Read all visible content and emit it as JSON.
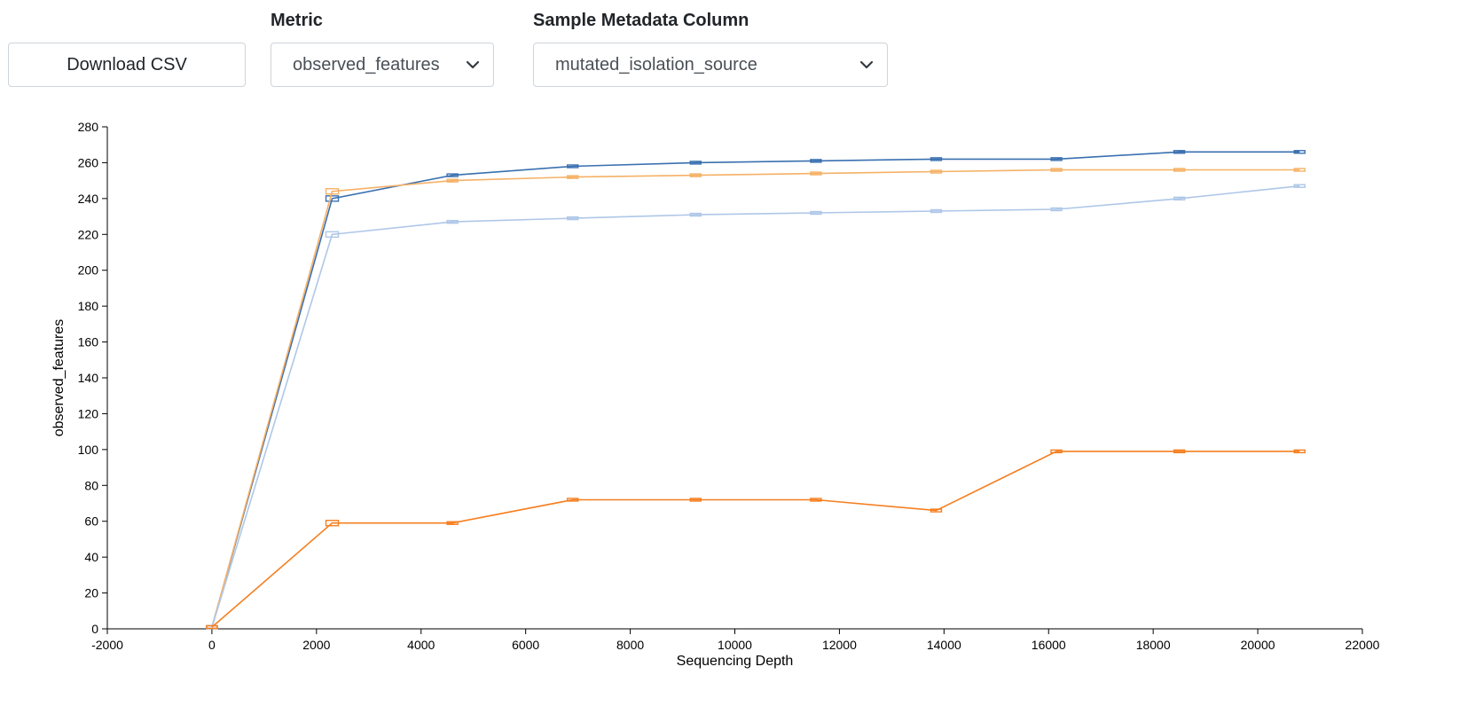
{
  "controls": {
    "download_label": "Download CSV",
    "metric_label": "Metric",
    "metric_value": "observed_features",
    "metadata_label": "Sample Metadata Column",
    "metadata_value": "mutated_isolation_source"
  },
  "icons": {
    "metric_dropdown": "chevron-down-icon",
    "metadata_dropdown": "chevron-down-icon"
  },
  "chart_data": {
    "type": "line",
    "xlabel": "Sequencing Depth",
    "ylabel": "observed_features",
    "xlim": [
      -2000,
      22000
    ],
    "ylim": [
      0,
      280
    ],
    "xticks": [
      -2000,
      0,
      2000,
      4000,
      6000,
      8000,
      10000,
      12000,
      14000,
      16000,
      18000,
      20000,
      22000
    ],
    "yticks": [
      0,
      20,
      40,
      60,
      80,
      100,
      120,
      140,
      160,
      180,
      200,
      220,
      240,
      260,
      280
    ],
    "x": [
      1,
      2300,
      4600,
      6900,
      9250,
      11550,
      13850,
      16150,
      18500,
      20800
    ],
    "series": [
      {
        "color": "#3a70b0",
        "values": [
          1,
          240,
          253,
          258,
          260,
          261,
          262,
          262,
          266,
          266
        ]
      },
      {
        "color": "#f5b166",
        "values": [
          1,
          244,
          250,
          252,
          253,
          254,
          255,
          256,
          256,
          256
        ]
      },
      {
        "color": "#aec7e8",
        "values": [
          1,
          220,
          227,
          229,
          231,
          232,
          233,
          234,
          240,
          247
        ]
      },
      {
        "color": "#f57f20",
        "values": [
          1,
          59,
          59,
          72,
          72,
          72,
          66,
          99,
          99,
          99
        ]
      }
    ]
  }
}
